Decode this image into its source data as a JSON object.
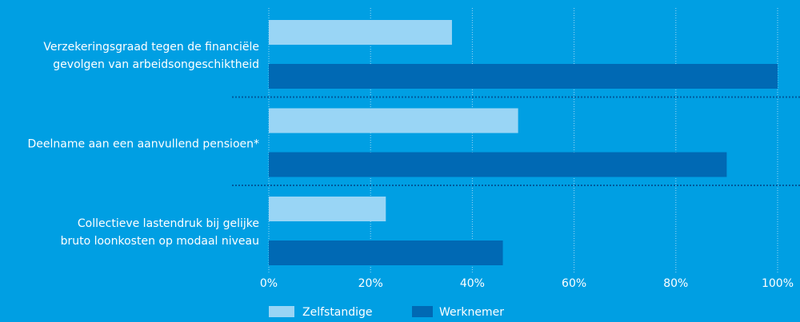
{
  "chart_data": {
    "type": "barh",
    "categories": [
      [
        "Verzekeringsgraad tegen de financiële",
        "gevolgen van arbeidsongeschiktheid"
      ],
      [
        "Deelname aan een aanvullend pensioen*"
      ],
      [
        "Collectieve lastendruk bij gelijke",
        "bruto loonkosten op modaal niveau"
      ]
    ],
    "series": [
      {
        "name": "Zelfstandige",
        "color": "#99d5f5",
        "values": [
          36,
          49,
          23
        ]
      },
      {
        "name": "Werknemer",
        "color": "#0069b4",
        "values": [
          100,
          90,
          46
        ]
      }
    ],
    "xlim": [
      0,
      100
    ],
    "xticks": [
      {
        "value": 0,
        "label": "0%"
      },
      {
        "value": 20,
        "label": "20%"
      },
      {
        "value": 40,
        "label": "40%"
      },
      {
        "value": 60,
        "label": "60%"
      },
      {
        "value": 80,
        "label": "80%"
      },
      {
        "value": 100,
        "label": "100%"
      }
    ],
    "grid": true,
    "legend": "bottom"
  }
}
